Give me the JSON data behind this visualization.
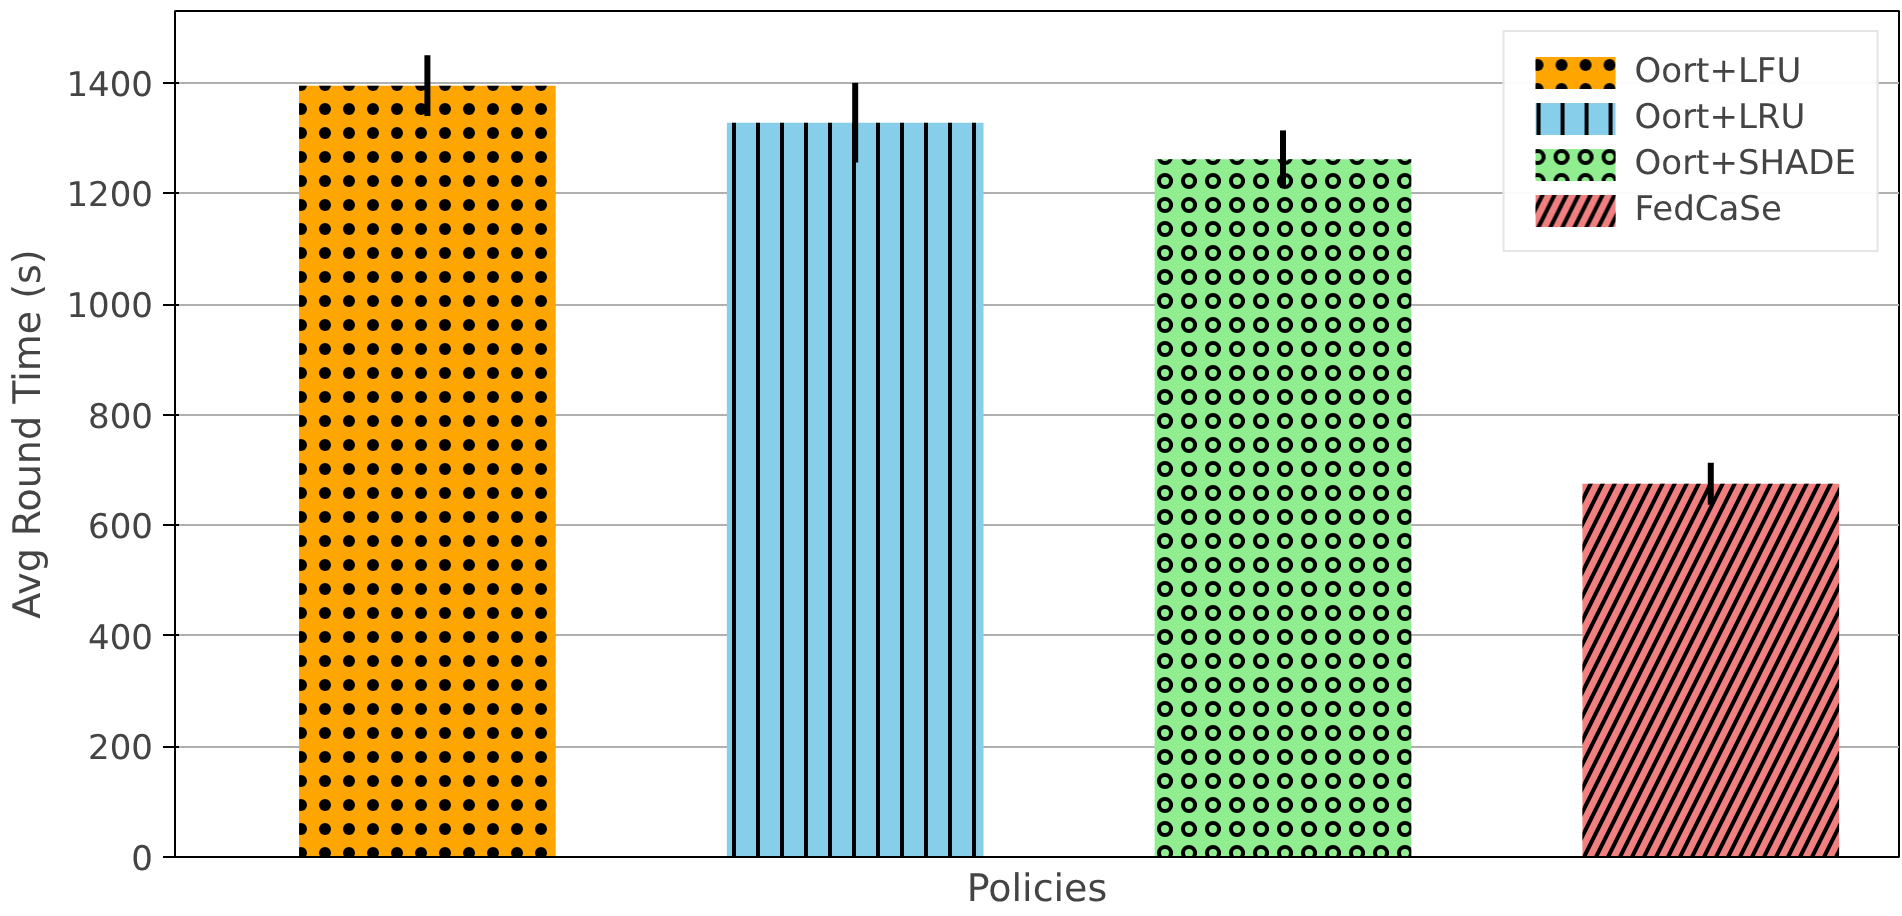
{
  "chart_data": {
    "type": "bar",
    "xlabel": "Policies",
    "ylabel": "Avg Round Time (s)",
    "categories": [
      null,
      null,
      null,
      null
    ],
    "series": [
      {
        "name": "Oort+LFU",
        "color": "#ffa500",
        "values": [
          1395,
          null,
          null,
          null
        ],
        "errors": [
          55,
          null,
          null,
          null
        ]
      },
      {
        "name": "Oort+LRU",
        "color": "#87ceeb",
        "values": [
          null,
          1328,
          null,
          null
        ],
        "errors": [
          null,
          72,
          null,
          null
        ]
      },
      {
        "name": "Oort+SHADE",
        "color": "#90ee90",
        "values": [
          null,
          null,
          1262,
          null
        ],
        "errors": [
          null,
          null,
          52,
          null
        ]
      },
      {
        "name": "FedCaSe",
        "color": "#f08080",
        "values": [
          null,
          null,
          null,
          675
        ],
        "errors": [
          null,
          null,
          null,
          38
        ]
      }
    ],
    "ylim": [
      0,
      1530
    ],
    "yticks": [
      0,
      200,
      400,
      600,
      800,
      1000,
      1200,
      1400
    ],
    "grid": "y",
    "legend": "top right"
  }
}
